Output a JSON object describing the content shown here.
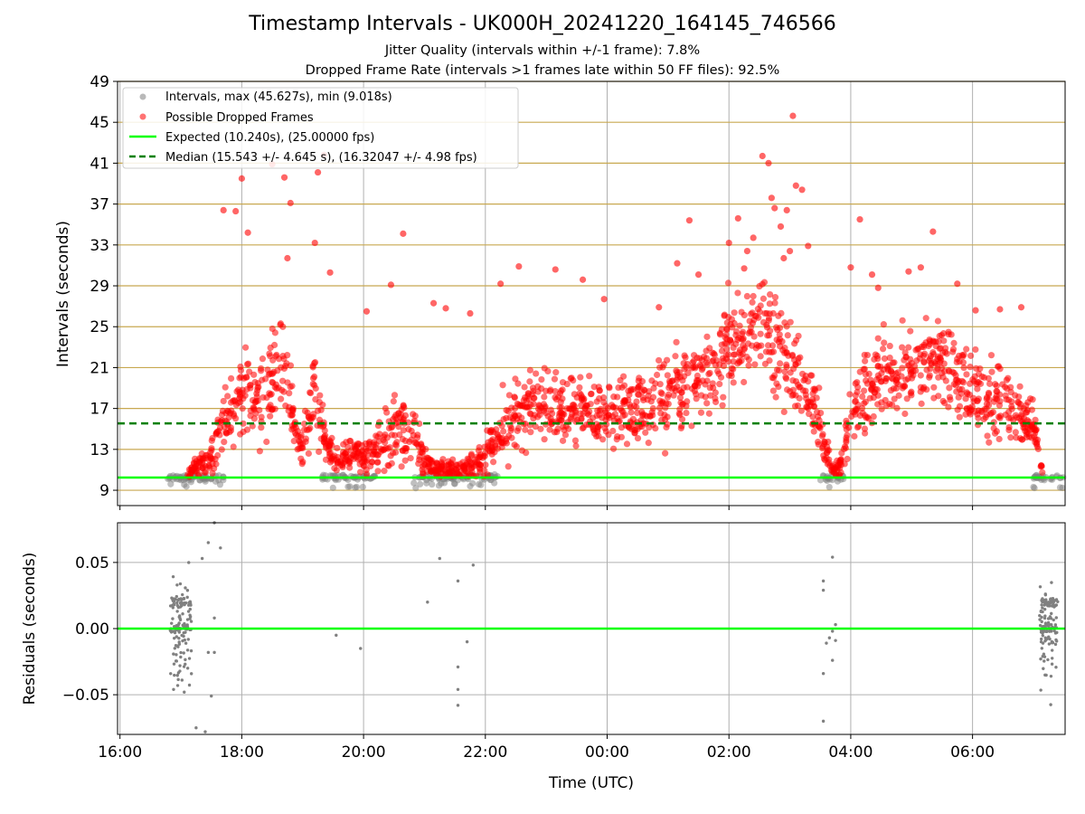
{
  "figure": {
    "title": "Timestamp Intervals - UK000H_20241220_164145_746566",
    "subtitle_1": "Jitter Quality (intervals within +/-1 frame): 7.8%",
    "subtitle_2": "Dropped Frame Rate (intervals >1 frames late within 50 FF files): 92.5%"
  },
  "colors": {
    "intervals": "#808080",
    "dropped": "#ff0000",
    "expected": "#00ff00",
    "median": "#008000",
    "hlines": "#c8a850",
    "grid": "#b0b0b0"
  },
  "chart_data": [
    {
      "type": "scatter",
      "ylabel": "Intervals (seconds)",
      "xlim": [
        15.96,
        31.52
      ],
      "ylim": [
        7.5,
        49
      ],
      "yticks": [
        "9",
        "13",
        "17",
        "21",
        "25",
        "29",
        "33",
        "37",
        "41",
        "45",
        "49"
      ],
      "ytick_values": [
        9,
        13,
        17,
        21,
        25,
        29,
        33,
        37,
        41,
        45,
        49
      ],
      "grid": true,
      "legend_position": "upper left",
      "legend": [
        {
          "marker": "dot",
          "label": "Intervals, max (45.627s), min (9.018s)"
        },
        {
          "marker": "dot",
          "label": "Possible Dropped Frames"
        },
        {
          "marker": "line",
          "label": "Expected (10.240s), (25.00000 fps)"
        },
        {
          "marker": "dashed",
          "label": "Median (15.543 +/- 4.645 s), (16.32047 +/- 4.98 fps)"
        }
      ],
      "reference_lines": {
        "expected": 10.24,
        "median": 15.543
      },
      "series_envelope": {
        "name": "Possible Dropped Frames",
        "hours": [
          17.1,
          17.3,
          17.5,
          17.6,
          17.8,
          18.0,
          18.3,
          18.5,
          18.7,
          18.9,
          19.0,
          19.2,
          19.4,
          19.6,
          19.8,
          20.0,
          20.2,
          20.4,
          20.6,
          20.8,
          21.0,
          21.2,
          21.4,
          21.6,
          21.8,
          22.0,
          22.2,
          22.5,
          23.0,
          23.5,
          24.0,
          24.5,
          25.0,
          25.5,
          26.0,
          26.5,
          27.0,
          27.4,
          27.6,
          27.7,
          27.8,
          27.9,
          28.0,
          28.5,
          29.0,
          29.5,
          30.0,
          30.5,
          31.0,
          31.15
        ],
        "median_interval": [
          10.5,
          11.5,
          12.0,
          14.5,
          16.5,
          19.0,
          17.5,
          20.0,
          21.0,
          13.5,
          13.5,
          19.0,
          13.0,
          12.0,
          12.5,
          12.5,
          13.0,
          14.0,
          15.5,
          14.5,
          12.0,
          11.0,
          11.0,
          11.0,
          11.5,
          12.5,
          14.0,
          17.0,
          17.5,
          17.0,
          16.0,
          17.0,
          18.5,
          20.0,
          23.0,
          25.0,
          22.0,
          17.0,
          13.0,
          11.0,
          11.0,
          13.0,
          17.0,
          20.0,
          21.0,
          22.0,
          18.0,
          18.0,
          15.5,
          10.8
        ],
        "spread": [
          0.6,
          1.0,
          1.5,
          2.5,
          3.0,
          4.0,
          4.0,
          4.5,
          4.5,
          1.5,
          2.0,
          4.0,
          1.5,
          1.2,
          1.2,
          1.5,
          1.8,
          2.5,
          3.5,
          3.0,
          1.5,
          1.0,
          1.0,
          1.0,
          1.2,
          1.8,
          2.0,
          3.0,
          3.0,
          3.0,
          3.0,
          3.0,
          3.5,
          3.5,
          4.0,
          4.0,
          4.0,
          3.0,
          2.0,
          1.0,
          1.0,
          1.5,
          3.0,
          3.5,
          3.5,
          3.5,
          3.0,
          3.0,
          2.0,
          0.6
        ]
      },
      "normal_intervals": {
        "name": "Intervals",
        "segments": [
          [
            16.7,
            17.7
          ],
          [
            19.3,
            20.2
          ],
          [
            20.8,
            22.2
          ],
          [
            27.5,
            27.9
          ],
          [
            31.0,
            31.52
          ]
        ],
        "values_range": [
          9.02,
          10.6
        ]
      },
      "dropped_outliers": {
        "points": [
          [
            17.7,
            36.4
          ],
          [
            17.9,
            36.3
          ],
          [
            18.1,
            34.2
          ],
          [
            18.0,
            39.5
          ],
          [
            18.5,
            40.9
          ],
          [
            18.7,
            39.6
          ],
          [
            18.8,
            37.1
          ],
          [
            18.75,
            31.7
          ],
          [
            19.25,
            40.1
          ],
          [
            19.35,
            41.8
          ],
          [
            19.2,
            33.2
          ],
          [
            19.45,
            30.3
          ],
          [
            20.05,
            26.5
          ],
          [
            20.45,
            29.1
          ],
          [
            20.65,
            34.1
          ],
          [
            21.15,
            27.3
          ],
          [
            21.35,
            26.8
          ],
          [
            21.75,
            26.3
          ],
          [
            22.25,
            29.2
          ],
          [
            22.55,
            30.9
          ],
          [
            23.15,
            30.6
          ],
          [
            23.6,
            29.6
          ],
          [
            23.95,
            27.7
          ],
          [
            24.85,
            26.9
          ],
          [
            25.15,
            31.2
          ],
          [
            25.35,
            35.4
          ],
          [
            25.5,
            30.1
          ],
          [
            26.0,
            33.2
          ],
          [
            26.15,
            35.6
          ],
          [
            26.3,
            32.4
          ],
          [
            26.4,
            33.7
          ],
          [
            26.7,
            37.6
          ],
          [
            26.75,
            36.6
          ],
          [
            26.85,
            34.8
          ],
          [
            26.95,
            36.4
          ],
          [
            27.1,
            38.8
          ],
          [
            27.2,
            38.4
          ],
          [
            27.3,
            32.9
          ],
          [
            27.0,
            32.4
          ],
          [
            26.9,
            31.7
          ],
          [
            28.0,
            30.8
          ],
          [
            28.15,
            35.5
          ],
          [
            28.45,
            28.8
          ],
          [
            28.95,
            30.4
          ],
          [
            29.15,
            30.8
          ],
          [
            29.35,
            34.3
          ],
          [
            29.75,
            29.2
          ],
          [
            30.05,
            26.6
          ],
          [
            30.45,
            26.7
          ],
          [
            30.8,
            26.9
          ],
          [
            26.25,
            30.7
          ],
          [
            26.55,
            41.7
          ],
          [
            26.65,
            41.0
          ],
          [
            27.05,
            45.627
          ],
          [
            28.35,
            30.1
          ]
        ]
      }
    },
    {
      "type": "scatter",
      "xlabel": "Time (UTC)",
      "ylabel": "Residuals (seconds)",
      "xlim": [
        15.96,
        31.52
      ],
      "ylim": [
        -0.08,
        0.08
      ],
      "yticks": [
        "0.05",
        "0.00",
        "−0.05"
      ],
      "ytick_values": [
        0.05,
        0.0,
        -0.05
      ],
      "xticks": [
        "16:00",
        "18:00",
        "20:00",
        "22:00",
        "00:00",
        "02:00",
        "04:00",
        "06:00"
      ],
      "xtick_values": [
        16,
        18,
        20,
        22,
        24,
        26,
        28,
        30
      ],
      "grid": true,
      "zero_line": 0.0,
      "clusters": [
        {
          "center": 17.0,
          "width": 0.35,
          "sd": 0.035,
          "count": 150
        },
        {
          "center": 31.25,
          "width": 0.3,
          "sd": 0.03,
          "count": 140
        }
      ],
      "points": [
        [
          17.45,
          0.065
        ],
        [
          17.55,
          0.08
        ],
        [
          17.65,
          0.061
        ],
        [
          17.55,
          0.008
        ],
        [
          17.45,
          -0.018
        ],
        [
          17.55,
          -0.018
        ],
        [
          17.5,
          -0.051
        ],
        [
          17.25,
          -0.075
        ],
        [
          17.4,
          -0.078
        ],
        [
          17.35,
          0.053
        ],
        [
          19.55,
          -0.005
        ],
        [
          19.95,
          -0.015
        ],
        [
          21.05,
          0.02
        ],
        [
          21.25,
          0.053
        ],
        [
          21.55,
          0.036
        ],
        [
          21.7,
          -0.01
        ],
        [
          21.8,
          0.048
        ],
        [
          21.55,
          -0.029
        ],
        [
          21.55,
          -0.046
        ],
        [
          21.55,
          -0.058
        ],
        [
          27.55,
          0.036
        ],
        [
          27.55,
          0.029
        ],
        [
          27.55,
          -0.034
        ],
        [
          27.55,
          -0.07
        ],
        [
          27.6,
          -0.011
        ],
        [
          27.65,
          -0.007
        ],
        [
          27.7,
          -0.024
        ],
        [
          27.7,
          -0.002
        ],
        [
          27.75,
          0.003
        ],
        [
          27.75,
          -0.009
        ],
        [
          27.7,
          0.054
        ]
      ]
    }
  ]
}
